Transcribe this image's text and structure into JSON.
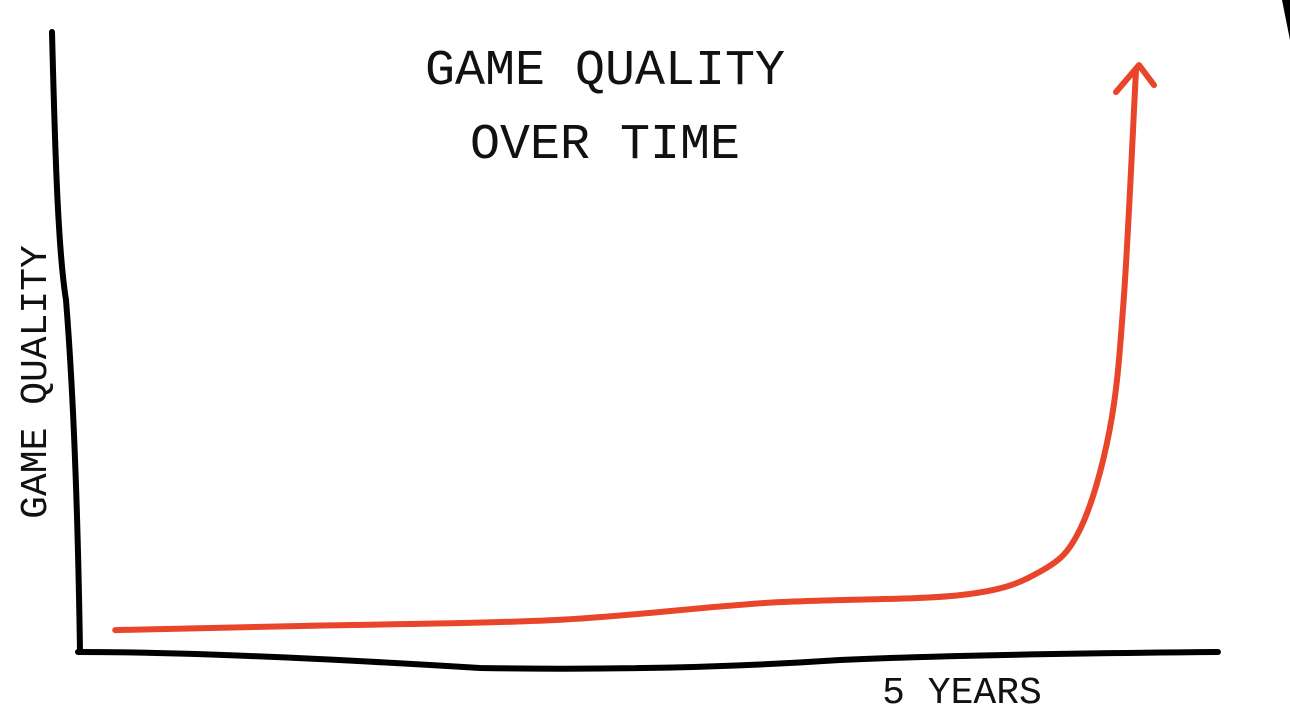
{
  "chart_data": {
    "type": "line",
    "title": "GAME QUALITY\nOVER TIME",
    "title_lines": [
      "GAME QUALITY",
      "OVER TIME"
    ],
    "xlabel": "5 YEARS",
    "ylabel": "GAME QUALITY",
    "grid": false,
    "legend": "none",
    "line_color": "#e8452a",
    "axis_color": "#000000",
    "xlim": [
      0,
      6.5
    ],
    "ylim": [
      0,
      105
    ],
    "series": [
      {
        "x": [
          0.2,
          1.25,
          2.7,
          3.9,
          5.0,
          5.45,
          5.68,
          5.85,
          5.93,
          6.0
        ],
        "y": [
          3.7,
          4.4,
          5.4,
          8.3,
          9.6,
          13.5,
          20.6,
          37.5,
          59.5,
          98.3
        ],
        "end_marker": "arrow"
      }
    ]
  }
}
